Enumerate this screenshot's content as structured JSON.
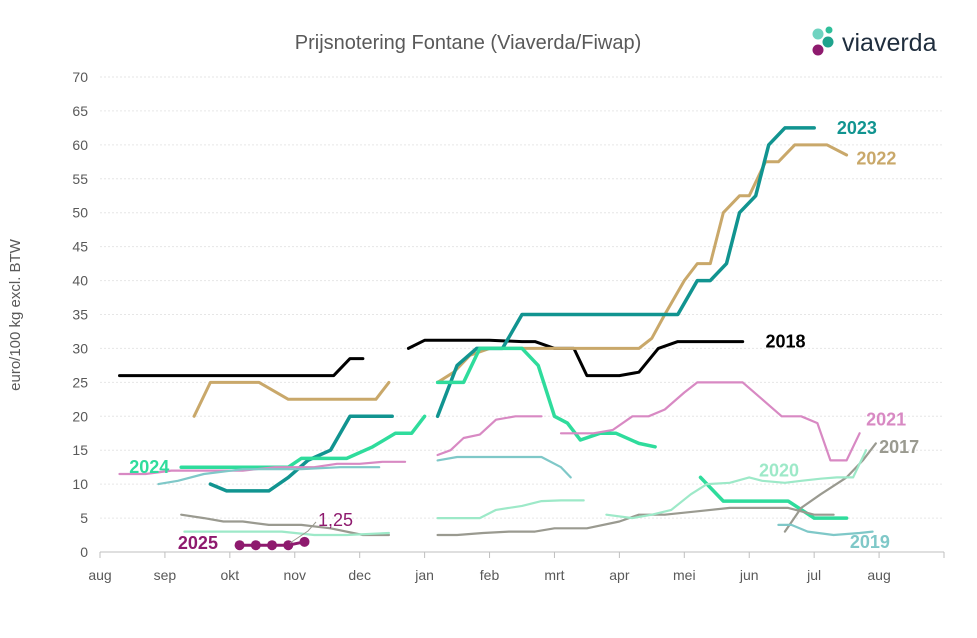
{
  "chart_data": {
    "type": "line",
    "title": "Prijsnotering Fontane (Viaverda/Fiwap)",
    "ylabel": "euro/100 kg excl. BTW",
    "xlabel": "",
    "ylim": [
      0,
      70
    ],
    "yticks": [
      0,
      5,
      10,
      15,
      20,
      25,
      30,
      35,
      40,
      45,
      50,
      55,
      60,
      65,
      70
    ],
    "xticks": [
      "aug",
      "sep",
      "okt",
      "nov",
      "dec",
      "jan",
      "feb",
      "mrt",
      "apr",
      "mei",
      "jun",
      "jul",
      "aug"
    ],
    "xlim": [
      0,
      13
    ],
    "grid": "horizontal",
    "brand": "viaverda",
    "annotation": {
      "text": "1,25",
      "color": "#8e1a6e"
    },
    "series": [
      {
        "name": "2018",
        "color": "#000000",
        "width": 3,
        "segments": [
          [
            [
              0.3,
              26
            ],
            [
              3.6,
              26
            ],
            [
              3.85,
              28.5
            ],
            [
              4.05,
              28.5
            ]
          ],
          [
            [
              4.75,
              30
            ],
            [
              5,
              31.2
            ],
            [
              6,
              31.2
            ],
            [
              6.5,
              31
            ],
            [
              6.7,
              31
            ],
            [
              7,
              30
            ],
            [
              7.3,
              30
            ],
            [
              7.5,
              26
            ],
            [
              8,
              26
            ],
            [
              8.3,
              26.5
            ],
            [
              8.6,
              30
            ],
            [
              8.9,
              31
            ],
            [
              9.9,
              31
            ]
          ]
        ]
      },
      {
        "name": "2022",
        "color": "#c9a86a",
        "width": 3,
        "segments": [
          [
            [
              1.45,
              20
            ],
            [
              1.7,
              25
            ],
            [
              2.45,
              25
            ],
            [
              2.9,
              22.5
            ],
            [
              4.25,
              22.5
            ],
            [
              4.45,
              25
            ]
          ],
          [
            [
              5.2,
              25
            ],
            [
              5.45,
              26.5
            ],
            [
              5.7,
              29
            ],
            [
              6,
              30
            ],
            [
              6.3,
              30
            ],
            [
              6.5,
              30
            ],
            [
              7.2,
              30
            ],
            [
              8.3,
              30
            ],
            [
              8.5,
              31.5
            ],
            [
              8.7,
              35
            ],
            [
              9,
              40
            ],
            [
              9.2,
              42.5
            ],
            [
              9.4,
              42.5
            ],
            [
              9.6,
              50
            ],
            [
              9.85,
              52.5
            ],
            [
              10,
              52.5
            ],
            [
              10.25,
              57.5
            ],
            [
              10.45,
              57.5
            ],
            [
              10.7,
              60
            ],
            [
              11.2,
              60
            ],
            [
              11.5,
              58.5
            ]
          ]
        ]
      },
      {
        "name": "2023",
        "color": "#119490",
        "width": 3.5,
        "segments": [
          [
            [
              1.7,
              10
            ],
            [
              1.95,
              9
            ],
            [
              2.6,
              9
            ],
            [
              2.9,
              11
            ],
            [
              3.2,
              13.5
            ],
            [
              3.55,
              15
            ],
            [
              3.85,
              20
            ],
            [
              4.5,
              20
            ]
          ],
          [
            [
              5.2,
              20
            ],
            [
              5.5,
              27.5
            ],
            [
              5.8,
              30
            ],
            [
              6.2,
              30
            ],
            [
              6.5,
              35
            ],
            [
              8.9,
              35
            ],
            [
              9.2,
              40
            ],
            [
              9.4,
              40
            ],
            [
              9.65,
              42.5
            ],
            [
              9.85,
              50
            ],
            [
              10.1,
              52.5
            ],
            [
              10.3,
              60
            ],
            [
              10.55,
              62.5
            ],
            [
              11,
              62.5
            ]
          ]
        ]
      },
      {
        "name": "2024",
        "color": "#2fdc9c",
        "width": 3.5,
        "segments": [
          [
            [
              1.25,
              12.5
            ],
            [
              2.9,
              12.5
            ],
            [
              3.1,
              13.8
            ],
            [
              3.8,
              13.8
            ],
            [
              4.2,
              15.5
            ],
            [
              4.55,
              17.5
            ],
            [
              4.8,
              17.5
            ],
            [
              5,
              20
            ]
          ],
          [
            [
              5.2,
              25
            ],
            [
              5.6,
              25
            ],
            [
              5.85,
              30
            ],
            [
              6.5,
              30
            ],
            [
              6.75,
              27.5
            ],
            [
              7,
              20
            ],
            [
              7.2,
              19
            ],
            [
              7.4,
              16.5
            ],
            [
              7.7,
              17.5
            ],
            [
              7.95,
              17.5
            ],
            [
              8.3,
              16
            ],
            [
              8.55,
              15.5
            ]
          ]
        ]
      },
      {
        "name": "2024-b",
        "color": "#2fdc9c",
        "width": 3.5,
        "segments": [
          [
            [
              9.25,
              11
            ],
            [
              9.6,
              7.5
            ],
            [
              10.6,
              7.5
            ],
            [
              11,
              5
            ],
            [
              11.5,
              5
            ]
          ]
        ]
      },
      {
        "name": "2021",
        "color": "#d889c3",
        "width": 2.2,
        "segments": [
          [
            [
              0.3,
              11.5
            ],
            [
              0.7,
              11.5
            ],
            [
              1.1,
              12
            ],
            [
              2.2,
              12
            ],
            [
              2.7,
              12.5
            ],
            [
              3.3,
              12.5
            ],
            [
              3.65,
              13
            ],
            [
              4,
              13
            ],
            [
              4.35,
              13.3
            ],
            [
              4.7,
              13.3
            ]
          ],
          [
            [
              5.2,
              14.3
            ],
            [
              5.4,
              15
            ],
            [
              5.6,
              16.8
            ],
            [
              5.85,
              17.3
            ],
            [
              6.1,
              19.5
            ],
            [
              6.4,
              20
            ],
            [
              6.8,
              20
            ]
          ],
          [
            [
              7.1,
              17.5
            ],
            [
              7.6,
              17.5
            ],
            [
              7.9,
              18
            ],
            [
              8.2,
              20
            ],
            [
              8.45,
              20
            ],
            [
              8.7,
              21
            ],
            [
              9,
              23.5
            ],
            [
              9.2,
              25
            ],
            [
              9.9,
              25
            ],
            [
              10.2,
              22.5
            ],
            [
              10.5,
              20
            ],
            [
              10.8,
              20
            ],
            [
              11.05,
              19
            ],
            [
              11.25,
              13.5
            ],
            [
              11.5,
              13.5
            ],
            [
              11.7,
              17.5
            ]
          ]
        ]
      },
      {
        "name": "2017",
        "color": "#9a9a90",
        "width": 2.2,
        "segments": [
          [
            [
              1.25,
              5.5
            ],
            [
              1.6,
              5
            ],
            [
              1.9,
              4.5
            ],
            [
              2.2,
              4.5
            ],
            [
              2.6,
              4
            ],
            [
              3.1,
              4
            ],
            [
              3.55,
              3.5
            ],
            [
              4.05,
              2.5
            ],
            [
              4.45,
              2.5
            ]
          ],
          [
            [
              5.2,
              2.5
            ],
            [
              5.5,
              2.5
            ],
            [
              5.9,
              2.8
            ],
            [
              6.3,
              3
            ],
            [
              6.7,
              3
            ],
            [
              7,
              3.5
            ],
            [
              7.5,
              3.5
            ],
            [
              8,
              4.5
            ],
            [
              8.3,
              5.5
            ],
            [
              8.7,
              5.5
            ],
            [
              9.2,
              6
            ],
            [
              9.7,
              6.5
            ],
            [
              10.6,
              6.5
            ],
            [
              11,
              5.5
            ],
            [
              11.3,
              5.5
            ]
          ],
          [
            [
              10.55,
              3
            ],
            [
              10.8,
              6.5
            ],
            [
              11.1,
              8.5
            ],
            [
              11.5,
              11
            ],
            [
              11.75,
              13.5
            ],
            [
              11.95,
              16
            ]
          ]
        ]
      },
      {
        "name": "2020",
        "color": "#9de9c8",
        "width": 2.2,
        "segments": [
          [
            [
              1.3,
              3
            ],
            [
              2.3,
              3
            ],
            [
              2.8,
              3
            ],
            [
              3.3,
              2.5
            ],
            [
              3.8,
              2.5
            ],
            [
              4.45,
              2.8
            ]
          ],
          [
            [
              5.2,
              5
            ],
            [
              5.85,
              5
            ],
            [
              6.1,
              6.2
            ],
            [
              6.5,
              6.8
            ],
            [
              6.8,
              7.5
            ],
            [
              7.1,
              7.6
            ],
            [
              7.45,
              7.6
            ]
          ],
          [
            [
              7.8,
              5.5
            ],
            [
              8.2,
              5
            ],
            [
              8.5,
              5.5
            ],
            [
              8.8,
              6.2
            ],
            [
              9.1,
              8.5
            ],
            [
              9.35,
              10
            ],
            [
              9.7,
              10.2
            ],
            [
              10,
              11
            ],
            [
              10.2,
              10.5
            ],
            [
              10.55,
              10.2
            ],
            [
              10.8,
              10.5
            ],
            [
              11.1,
              10.8
            ],
            [
              11.35,
              11
            ],
            [
              11.6,
              11
            ],
            [
              11.8,
              15
            ]
          ]
        ]
      },
      {
        "name": "2019",
        "color": "#7fc8c8",
        "width": 2.2,
        "segments": [
          [
            [
              0.9,
              10
            ],
            [
              1.2,
              10.5
            ],
            [
              1.6,
              11.5
            ],
            [
              2.2,
              12.2
            ],
            [
              3.1,
              12.2
            ],
            [
              3.7,
              12.5
            ],
            [
              4.3,
              12.5
            ]
          ],
          [
            [
              5.2,
              13.5
            ],
            [
              5.5,
              14
            ],
            [
              6.4,
              14
            ],
            [
              6.8,
              14
            ],
            [
              7.1,
              12.5
            ],
            [
              7.25,
              11
            ]
          ],
          [
            [
              10.45,
              4
            ],
            [
              10.65,
              4
            ],
            [
              10.9,
              3
            ],
            [
              11.3,
              2.5
            ],
            [
              11.7,
              2.8
            ],
            [
              11.9,
              3
            ]
          ]
        ]
      },
      {
        "name": "2025",
        "color": "#8e1a6e",
        "width": 3,
        "markers": true,
        "segments": [
          [
            [
              2.15,
              1
            ],
            [
              2.4,
              1
            ],
            [
              2.65,
              1
            ],
            [
              2.9,
              1
            ],
            [
              3.15,
              1.5
            ]
          ]
        ]
      }
    ],
    "labels": [
      {
        "text": "2023",
        "color": "#119490",
        "x": 11.35,
        "y": 62.5
      },
      {
        "text": "2022",
        "color": "#c9a86a",
        "x": 11.65,
        "y": 58
      },
      {
        "text": "2018",
        "color": "#000000",
        "x": 10.25,
        "y": 31
      },
      {
        "text": "2021",
        "color": "#d889c3",
        "x": 11.8,
        "y": 19.5
      },
      {
        "text": "2017",
        "color": "#9a9a90",
        "x": 12.0,
        "y": 15.5
      },
      {
        "text": "2020",
        "color": "#9de9c8",
        "x": 10.15,
        "y": 12
      },
      {
        "text": "2019",
        "color": "#7fc8c8",
        "x": 11.55,
        "y": 1.5
      },
      {
        "text": "2024",
        "color": "#2fdc9c",
        "x": 0.45,
        "y": 12.5
      },
      {
        "text": "2025",
        "color": "#8e1a6e",
        "x": 1.2,
        "y": 1.3
      }
    ]
  }
}
